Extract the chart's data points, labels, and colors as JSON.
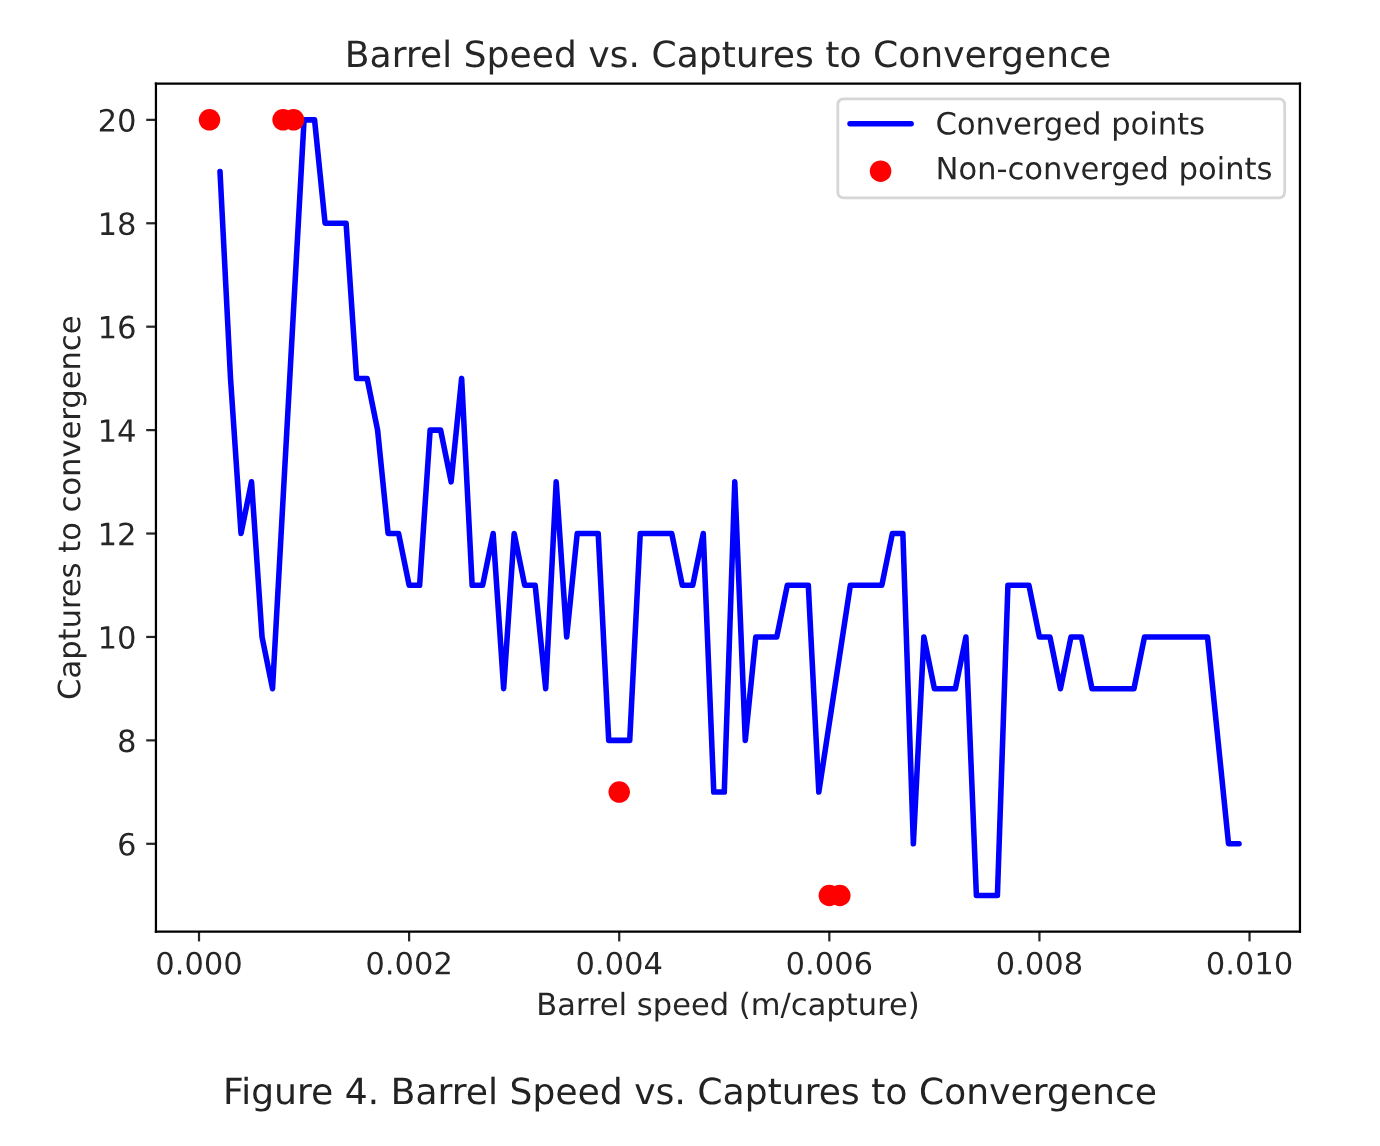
{
  "chart_data": {
    "type": "line",
    "title": "Barrel Speed vs. Captures to Convergence",
    "xlabel": "Barrel speed (m/capture)",
    "ylabel": "Captures to convergence",
    "series": [
      {
        "name": "Converged points",
        "color": "#0000ff",
        "marker": "none",
        "x": [
          0.0002,
          0.0003,
          0.0004,
          0.0005,
          0.0006,
          0.0007,
          0.001,
          0.0011,
          0.0012,
          0.0013,
          0.0014,
          0.0015,
          0.0016,
          0.0017,
          0.0018,
          0.0019,
          0.002,
          0.0021,
          0.0022,
          0.0023,
          0.0024,
          0.0025,
          0.0026,
          0.0027,
          0.0028,
          0.0029,
          0.003,
          0.0031,
          0.0032,
          0.0033,
          0.0034,
          0.0035,
          0.0036,
          0.0037,
          0.0038,
          0.0039,
          0.0041,
          0.0042,
          0.0043,
          0.0044,
          0.0045,
          0.0046,
          0.0047,
          0.0048,
          0.0049,
          0.005,
          0.0051,
          0.0052,
          0.0053,
          0.0054,
          0.0055,
          0.0056,
          0.0057,
          0.0058,
          0.0059,
          0.0062,
          0.0063,
          0.0064,
          0.0065,
          0.0066,
          0.0067,
          0.0068,
          0.0069,
          0.007,
          0.0071,
          0.0072,
          0.0073,
          0.0074,
          0.0075,
          0.0076,
          0.0077,
          0.0078,
          0.0079,
          0.008,
          0.0081,
          0.0082,
          0.0083,
          0.0084,
          0.0085,
          0.0086,
          0.0087,
          0.0088,
          0.0089,
          0.009,
          0.0091,
          0.0092,
          0.0093,
          0.0094,
          0.0095,
          0.0096,
          0.0098,
          0.0099
        ],
        "values": [
          19,
          15,
          12,
          13,
          10,
          9,
          20,
          20,
          18,
          18,
          18,
          15,
          15,
          14,
          12,
          12,
          11,
          11,
          14,
          14,
          13,
          15,
          11,
          11,
          12,
          9,
          12,
          11,
          11,
          9,
          13,
          10,
          12,
          12,
          12,
          8,
          8,
          12,
          12,
          12,
          12,
          11,
          11,
          12,
          7,
          7,
          13,
          8,
          10,
          10,
          10,
          11,
          11,
          11,
          7,
          11,
          11,
          11,
          11,
          12,
          12,
          6,
          10,
          9,
          9,
          9,
          10,
          5,
          5,
          5,
          11,
          11,
          11,
          10,
          10,
          9,
          10,
          10,
          9,
          9,
          9,
          9,
          9,
          10,
          10,
          10,
          10,
          10,
          10,
          10,
          6,
          6
        ]
      },
      {
        "name": "Non-converged points",
        "type": "scatter",
        "color": "#ff0000",
        "marker": "circle",
        "x": [
          0.0001,
          0.0008,
          0.0009,
          0.004,
          0.006,
          0.0061
        ],
        "values": [
          20,
          20,
          20,
          7,
          5,
          5
        ]
      }
    ],
    "xlim": [
      -0.00041,
      0.01048
    ],
    "xticks": [
      {
        "value": 0,
        "label": "0.000"
      },
      {
        "value": 0.002,
        "label": "0.002"
      },
      {
        "value": 0.004,
        "label": "0.004"
      },
      {
        "value": 0.006,
        "label": "0.006"
      },
      {
        "value": 0.008,
        "label": "0.008"
      },
      {
        "value": 0.01,
        "label": "0.010"
      }
    ],
    "ylim": [
      4.3,
      20.7
    ],
    "yticks": [
      6,
      8,
      10,
      12,
      14,
      16,
      18,
      20
    ],
    "grid": false,
    "legend": "top right",
    "annotations": [
      "Figure 4. Barrel Speed vs. Captures to Convergence"
    ]
  }
}
